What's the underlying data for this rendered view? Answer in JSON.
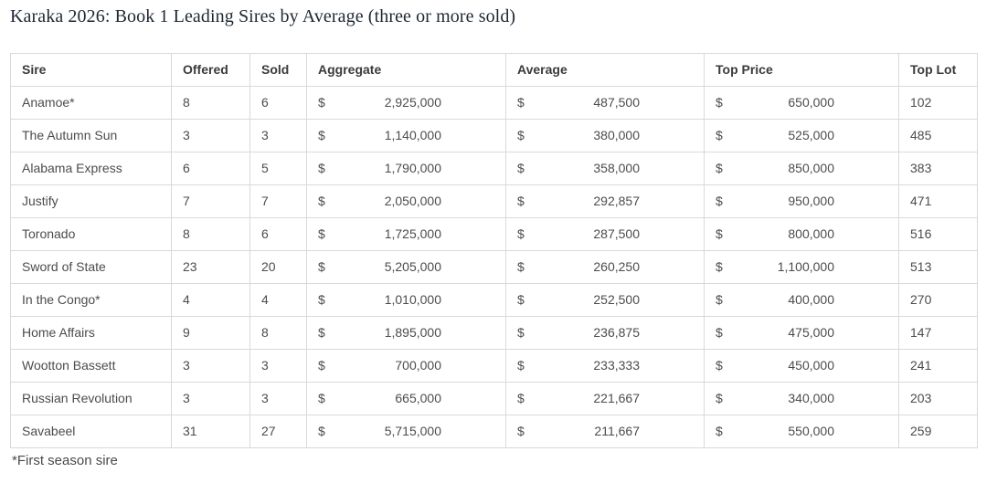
{
  "colors": {
    "title_text": "#1e2833",
    "header_text": "#3b3b3b",
    "body_text": "#4c4c4c",
    "border": "#d9d9d9",
    "background": "#ffffff"
  },
  "chart_data": {
    "type": "table",
    "title": "Karaka 2026: Book 1 Leading Sires by Average (three or more sold)",
    "footnote": "*First season sire",
    "currency_symbol": "$",
    "columns": [
      "Sire",
      "Offered",
      "Sold",
      "Aggregate",
      "Average",
      "Top Price",
      "Top Lot"
    ],
    "currency_columns": [
      "Aggregate",
      "Average",
      "Top Price"
    ],
    "rows": [
      [
        "Anamoe*",
        8,
        6,
        2925000,
        487500,
        650000,
        102
      ],
      [
        "The Autumn Sun",
        3,
        3,
        1140000,
        380000,
        525000,
        485
      ],
      [
        "Alabama Express",
        6,
        5,
        1790000,
        358000,
        850000,
        383
      ],
      [
        "Justify",
        7,
        7,
        2050000,
        292857,
        950000,
        471
      ],
      [
        "Toronado",
        8,
        6,
        1725000,
        287500,
        800000,
        516
      ],
      [
        "Sword of State",
        23,
        20,
        5205000,
        260250,
        1100000,
        513
      ],
      [
        "In the Congo*",
        4,
        4,
        1010000,
        252500,
        400000,
        270
      ],
      [
        "Home Affairs",
        9,
        8,
        1895000,
        236875,
        475000,
        147
      ],
      [
        "Wootton Bassett",
        3,
        3,
        700000,
        233333,
        450000,
        241
      ],
      [
        "Russian Revolution",
        3,
        3,
        665000,
        221667,
        340000,
        203
      ],
      [
        "Savabeel",
        31,
        27,
        5715000,
        211667,
        550000,
        259
      ]
    ]
  }
}
